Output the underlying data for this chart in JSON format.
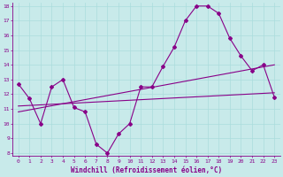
{
  "xlabel": "Windchill (Refroidissement éolien,°C)",
  "x_data": [
    0,
    1,
    2,
    3,
    4,
    5,
    6,
    7,
    8,
    9,
    10,
    11,
    12,
    13,
    14,
    15,
    16,
    17,
    18,
    19,
    20,
    21,
    22,
    23
  ],
  "line1": [
    12.7,
    11.7,
    10.0,
    12.5,
    13.0,
    11.1,
    10.8,
    8.6,
    8.0,
    9.3,
    10.0,
    12.5,
    12.5,
    13.9,
    15.2,
    17.0,
    18.0,
    18.0,
    17.5,
    15.8,
    14.6,
    13.6,
    14.0,
    11.8
  ],
  "line2_x": [
    0,
    23
  ],
  "line2_y": [
    11.2,
    12.1
  ],
  "line3_x": [
    0,
    23
  ],
  "line3_y": [
    10.8,
    14.0
  ],
  "line_color": "#880088",
  "bg_color": "#c8eaea",
  "grid_color": "#aadddd",
  "ylim": [
    7.8,
    18.2
  ],
  "xlim": [
    -0.5,
    23.5
  ],
  "yticks": [
    8,
    9,
    10,
    11,
    12,
    13,
    14,
    15,
    16,
    17,
    18
  ],
  "xticks": [
    0,
    1,
    2,
    3,
    4,
    5,
    6,
    7,
    8,
    9,
    10,
    11,
    12,
    13,
    14,
    15,
    16,
    17,
    18,
    19,
    20,
    21,
    22,
    23
  ],
  "tick_fontsize": 4.5,
  "xlabel_fontsize": 5.5
}
